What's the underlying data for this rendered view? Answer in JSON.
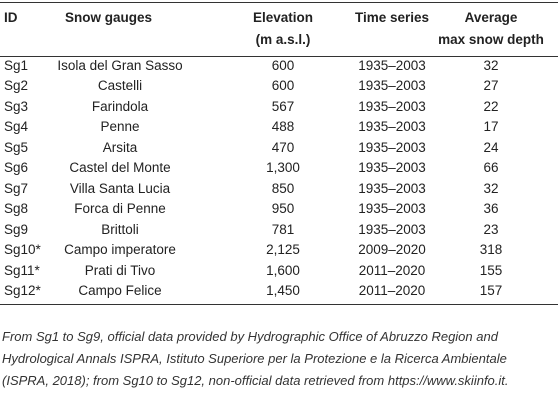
{
  "table": {
    "header": [
      [
        "ID"
      ],
      [
        "Snow gauges"
      ],
      [
        "Elevation",
        "(m a.s.l.)"
      ],
      [
        "Time series"
      ],
      [
        "Average",
        "max snow depth"
      ]
    ],
    "rows": [
      [
        "Sg1",
        "Isola del Gran Sasso",
        "600",
        "1935–2003",
        "32"
      ],
      [
        "Sg2",
        "Castelli",
        "600",
        "1935–2003",
        "27"
      ],
      [
        "Sg3",
        "Farindola",
        "567",
        "1935–2003",
        "22"
      ],
      [
        "Sg4",
        "Penne",
        "488",
        "1935–2003",
        "17"
      ],
      [
        "Sg5",
        "Arsita",
        "470",
        "1935–2003",
        "24"
      ],
      [
        "Sg6",
        "Castel del Monte",
        "1,300",
        "1935–2003",
        "66"
      ],
      [
        "Sg7",
        "Villa Santa Lucia",
        "850",
        "1935–2003",
        "32"
      ],
      [
        "Sg8",
        "Forca di Penne",
        "950",
        "1935–2003",
        "36"
      ],
      [
        "Sg9",
        "Brittoli",
        "781",
        "1935–2003",
        "23"
      ],
      [
        "Sg10*",
        "Campo imperatore",
        "2,125",
        "2009–2020",
        "318"
      ],
      [
        "Sg11*",
        "Prati di Tivo",
        "1,600",
        "2011–2020",
        "155"
      ],
      [
        "Sg12*",
        "Campo Felice",
        "1,450",
        "2011–2020",
        "157"
      ]
    ],
    "footnote": "From Sg1 to Sg9, official data provided by Hydrographic Office of Abruzzo Region and Hydrological Annals ISPRA, Istituto Superiore per la Protezione e la Ricerca Ambientale (ISPRA, 2018); from Sg10 to Sg12, non-official data retrieved from https://www.skiinfo.it."
  }
}
